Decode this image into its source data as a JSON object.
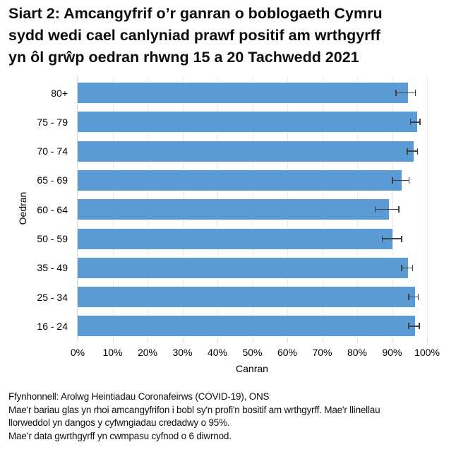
{
  "title_lines": [
    "Siart 2: Amcangyfrif o’r ganran o boblogaeth Cymru",
    "sydd wedi cael canlyniad prawf positif am wrthgyrff",
    "yn ôl grŵp oedran rhwng 15 a 20 Tachwedd 2021"
  ],
  "colors": {
    "bar": "#5B9BD5",
    "error_bar": "#404040",
    "grid": "#ECECEC"
  },
  "chart_data": {
    "type": "bar",
    "orientation": "horizontal",
    "title": "Siart 2: Amcangyfrif o’r ganran o boblogaeth Cymru sydd wedi cael canlyniad prawf positif am wrthgyrff yn ôl grŵp oedran rhwng 15 a 20 Tachwedd 2021",
    "xlabel": "Canran",
    "ylabel": "Oedran",
    "xlim": [
      0,
      100
    ],
    "x_ticks": [
      "0%",
      "10%",
      "20%",
      "30%",
      "40%",
      "50%",
      "60%",
      "70%",
      "80%",
      "90%",
      "100%"
    ],
    "grid": true,
    "legend": null,
    "categories": [
      "80+",
      "75 - 79",
      "70 - 74",
      "65 - 69",
      "60 - 64",
      "50 - 59",
      "35 - 49",
      "25 - 34",
      "16 - 24"
    ],
    "values": [
      94.6,
      97.1,
      96.1,
      92.8,
      89.0,
      90.2,
      94.6,
      96.5,
      96.5
    ],
    "ci_lower": [
      91.1,
      95.3,
      94.3,
      90.1,
      85.2,
      87.2,
      92.7,
      94.7,
      94.7
    ],
    "ci_upper": [
      96.7,
      98.0,
      97.3,
      94.8,
      91.9,
      92.7,
      95.9,
      97.5,
      97.8
    ],
    "unit": "%"
  },
  "notes": [
    "Ffynhonnell: Arolwg Heintiadau Coronafeirws (COVID-19), ONS",
    "Mae'r bariau glas yn rhoi amcangyfrifon i bobl sy'n profi'n bositif am wrthgyrff. Mae'r llinellau",
    "llorweddol yn dangos y cyfwngiadau credadwy o 95%.",
    "Mae’r data gwrthgyrff yn cwmpasu cyfnod o 6 diwrnod."
  ]
}
